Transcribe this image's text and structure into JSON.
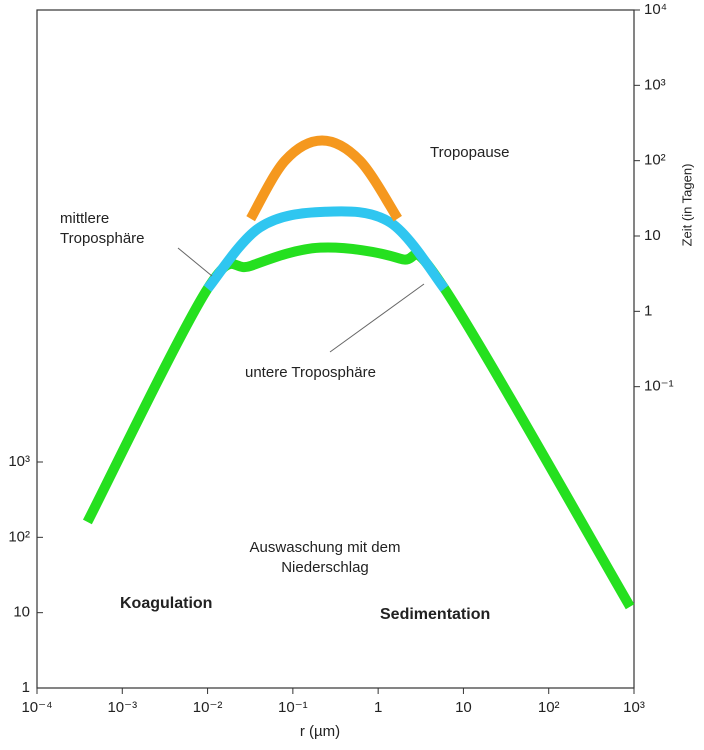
{
  "chart_data": {
    "type": "line",
    "xlabel": "r (µm)",
    "y2label": "Zeit (in Tagen)",
    "xscale": "log",
    "yscale": "log",
    "xlim": [
      0.0001,
      1000
    ],
    "xticks": [
      {
        "value": 0.0001,
        "label": "10⁻⁴"
      },
      {
        "value": 0.001,
        "label": "10⁻³"
      },
      {
        "value": 0.01,
        "label": "10⁻²"
      },
      {
        "value": 0.1,
        "label": "10⁻¹"
      },
      1,
      10,
      {
        "value": 100,
        "label": "10²"
      },
      {
        "value": 1000,
        "label": "10³"
      }
    ],
    "ylim": [
      1,
      1000000000
    ],
    "yticks": [
      1,
      10,
      {
        "value": 100,
        "label": "10²"
      },
      {
        "value": 1000,
        "label": "10³"
      }
    ],
    "y2lim": [
      1e-05,
      10000
    ],
    "y2ticks": [
      {
        "value": 0.1,
        "label": "10⁻¹"
      },
      1,
      10,
      {
        "value": 100,
        "label": "10²"
      },
      {
        "value": 1000,
        "label": "10³"
      },
      {
        "value": 10000,
        "label": "10⁴"
      }
    ],
    "series": [
      {
        "name": "Tropopause",
        "color": "#f5981e",
        "axis": "y2",
        "x": [
          0.032,
          0.081,
          0.22,
          0.61,
          1.7
        ],
        "values": [
          17,
          100,
          185,
          100,
          17
        ]
      },
      {
        "name": "mittlere Troposphäre",
        "color": "#2fc6f0",
        "axis": "y2",
        "x": [
          0.01,
          0.041,
          0.24,
          1.4,
          6
        ],
        "values": [
          2,
          13,
          21,
          15,
          2
        ]
      },
      {
        "name": "untere Troposphäre",
        "color": "#25e01f",
        "axis": "y2",
        "x": [
          0.00039,
          0.01,
          0.032,
          0.21,
          1.8,
          6,
          900
        ],
        "values": [
          0.0016,
          2,
          4,
          7,
          5,
          2,
          0.00012
        ]
      }
    ],
    "annotations": [
      {
        "lines": [
          "Tropopause"
        ]
      },
      {
        "lines": [
          "mittlere",
          "Troposphäre"
        ]
      },
      {
        "lines": [
          "untere Troposphäre"
        ]
      },
      {
        "lines": [
          "Auswaschung mit dem",
          "Niederschlag"
        ]
      },
      {
        "lines": [
          "Koagulation"
        ],
        "bold": true
      },
      {
        "lines": [
          "Sedimentation"
        ],
        "bold": true
      }
    ]
  }
}
